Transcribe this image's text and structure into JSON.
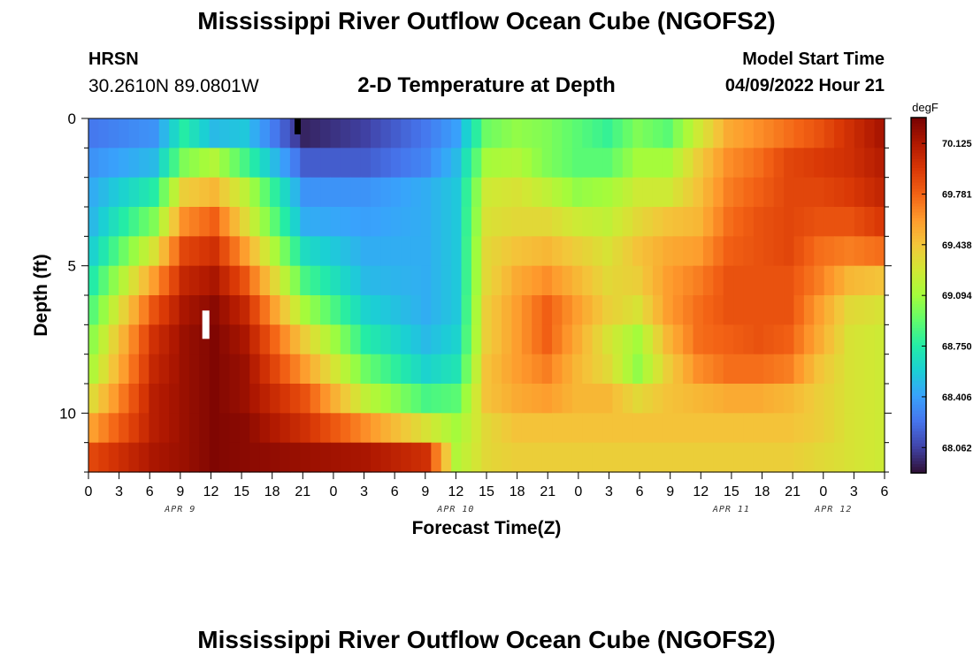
{
  "header": {
    "title": "Mississippi River Outflow Ocean Cube (NGOFS2)",
    "station": "HRSN",
    "coords": "30.2610N  89.0801W",
    "subtitle": "2-D Temperature at Depth",
    "model_start_label": "Model Start Time",
    "model_start_value": "04/09/2022 Hour 21"
  },
  "footer": {
    "title": "Mississippi River Outflow Ocean Cube (NGOFS2)"
  },
  "colors": {
    "background": "#ffffff",
    "axis": "#000000"
  },
  "chart_data": {
    "type": "heatmap",
    "title": "2-D Temperature at Depth",
    "xlabel": "Forecast Time(Z)",
    "ylabel": "Depth (ft)",
    "x_tick_labels": [
      "0",
      "3",
      "6",
      "9",
      "12",
      "15",
      "18",
      "21",
      "0",
      "3",
      "6",
      "9",
      "12",
      "15",
      "18",
      "21",
      "0",
      "3",
      "6",
      "9",
      "12",
      "15",
      "18",
      "21",
      "0",
      "3",
      "6"
    ],
    "x_date_labels": [
      "APR 9",
      "APR 10",
      "APR 11",
      "APR 12"
    ],
    "x_range_hours": [
      0,
      78
    ],
    "y_tick_labels": [
      "0",
      "5",
      "10"
    ],
    "y_range_ft": [
      0,
      12
    ],
    "colorbar": {
      "unit": "degF",
      "tick_labels": [
        "70.125",
        "69.781",
        "69.438",
        "69.094",
        "68.750",
        "68.406",
        "68.062"
      ],
      "range": [
        67.89,
        70.3
      ],
      "colormap": [
        "#30123b",
        "#4145ab",
        "#4675ed",
        "#39a2fc",
        "#1bcfd4",
        "#24eca6",
        "#61fc6c",
        "#a4fc3b",
        "#d1e834",
        "#f3c63a",
        "#fe9b2d",
        "#f36315",
        "#d93806",
        "#b11901",
        "#7a0402"
      ]
    },
    "depth_bands": 12,
    "time_columns": 79,
    "time_anchors_hours": [
      0,
      6,
      9,
      12,
      15,
      21,
      27,
      33,
      36,
      39,
      42,
      45,
      48,
      51,
      54,
      57,
      60,
      63,
      66,
      69,
      72,
      75,
      78
    ],
    "anchor_values": [
      [
        68.25,
        68.35,
        68.75,
        68.5,
        68.55,
        67.95,
        68.05,
        68.25,
        68.4,
        68.95,
        69.05,
        69.0,
        68.9,
        68.8,
        69.0,
        68.9,
        69.25,
        69.55,
        69.65,
        69.75,
        69.85,
        70.0,
        70.15
      ],
      [
        68.35,
        68.5,
        69.0,
        69.15,
        68.85,
        68.15,
        68.15,
        68.3,
        68.5,
        69.1,
        69.15,
        69.0,
        68.9,
        68.9,
        69.1,
        69.1,
        69.4,
        69.65,
        69.75,
        69.9,
        69.95,
        70.0,
        70.1
      ],
      [
        68.45,
        68.75,
        69.4,
        69.5,
        69.2,
        68.35,
        68.35,
        68.45,
        68.55,
        69.25,
        69.3,
        69.2,
        69.05,
        69.1,
        69.25,
        69.25,
        69.45,
        69.7,
        69.8,
        69.9,
        69.9,
        69.95,
        70.05
      ],
      [
        68.5,
        69.0,
        69.65,
        69.8,
        69.35,
        68.45,
        68.4,
        68.45,
        68.55,
        69.3,
        69.35,
        69.35,
        69.25,
        69.2,
        69.35,
        69.45,
        69.5,
        69.75,
        69.85,
        69.9,
        69.85,
        69.85,
        69.95
      ],
      [
        68.6,
        69.3,
        69.9,
        70.0,
        69.6,
        68.65,
        68.45,
        68.45,
        68.55,
        69.35,
        69.45,
        69.5,
        69.4,
        69.3,
        69.45,
        69.55,
        69.6,
        69.8,
        69.85,
        69.9,
        69.75,
        69.7,
        69.75
      ],
      [
        68.75,
        69.6,
        70.05,
        70.15,
        69.85,
        68.85,
        68.5,
        68.45,
        68.55,
        69.35,
        69.55,
        69.65,
        69.5,
        69.35,
        69.4,
        69.6,
        69.7,
        69.85,
        69.85,
        69.85,
        69.7,
        69.5,
        69.45
      ],
      [
        68.9,
        69.85,
        70.15,
        70.25,
        70.05,
        69.1,
        68.6,
        68.45,
        68.55,
        69.4,
        69.6,
        69.8,
        69.6,
        69.4,
        69.3,
        69.6,
        69.75,
        69.85,
        69.85,
        69.85,
        69.6,
        69.35,
        69.3
      ],
      [
        69.05,
        70.0,
        70.2,
        70.28,
        70.15,
        69.4,
        68.75,
        68.5,
        68.6,
        69.4,
        69.6,
        69.8,
        69.55,
        69.3,
        69.1,
        69.5,
        69.75,
        69.8,
        69.85,
        69.8,
        69.55,
        69.3,
        69.25
      ],
      [
        69.15,
        70.05,
        70.2,
        70.28,
        70.2,
        69.6,
        68.95,
        68.6,
        68.7,
        69.45,
        69.6,
        69.7,
        69.5,
        69.35,
        69.05,
        69.4,
        69.65,
        69.75,
        69.75,
        69.7,
        69.45,
        69.3,
        69.25
      ],
      [
        69.35,
        70.1,
        70.2,
        70.28,
        70.2,
        69.85,
        69.2,
        68.85,
        68.9,
        69.45,
        69.55,
        69.6,
        69.5,
        69.5,
        69.35,
        69.45,
        69.5,
        69.55,
        69.55,
        69.5,
        69.4,
        69.3,
        69.25
      ],
      [
        69.6,
        70.1,
        70.2,
        70.28,
        70.25,
        70.0,
        69.65,
        69.3,
        69.1,
        69.35,
        69.45,
        69.45,
        69.45,
        69.45,
        69.45,
        69.45,
        69.45,
        69.45,
        69.45,
        69.45,
        69.4,
        69.3,
        69.25
      ],
      [
        69.9,
        70.15,
        70.2,
        70.28,
        70.25,
        70.2,
        70.15,
        70.0,
        69.15,
        69.35,
        69.4,
        69.4,
        69.4,
        69.4,
        69.4,
        69.4,
        69.4,
        69.4,
        69.4,
        69.4,
        69.35,
        69.3,
        69.25
      ]
    ],
    "markers": [
      {
        "type": "black-bar",
        "time_hours": 20.5,
        "depth_ft": 0.3
      },
      {
        "type": "white-bar",
        "time_hours": 11.5,
        "depth_ft": 7.0
      }
    ]
  }
}
